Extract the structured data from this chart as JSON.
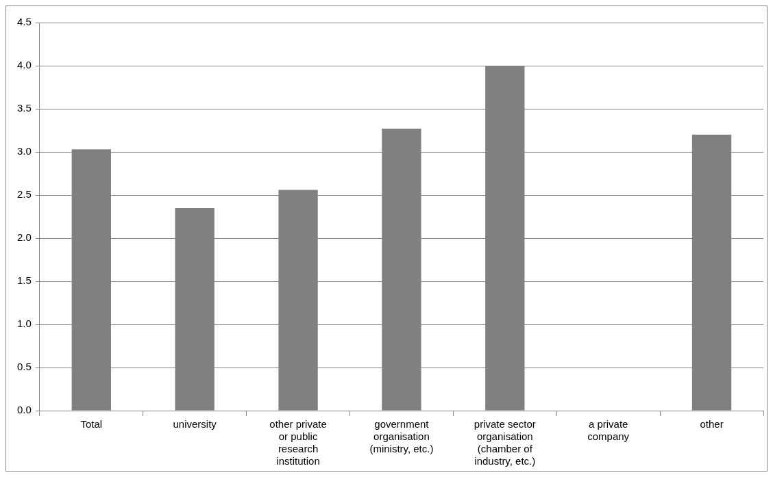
{
  "chart_data": {
    "type": "bar",
    "categories": [
      "Total",
      "university",
      "other private\nor public\nresearch\ninstitution",
      "government\norganisation\n(ministry, etc.)",
      "private sector\norganisation\n(chamber of\nindustry, etc.)",
      "a private\ncompany",
      "other"
    ],
    "values": [
      3.03,
      2.35,
      2.56,
      3.27,
      4.0,
      null,
      3.2
    ],
    "color": "#808080",
    "ylim": [
      0,
      4.5
    ],
    "yticks": [
      {
        "value": 0,
        "label": "0.0"
      },
      {
        "value": 0.5,
        "label": "0.5"
      },
      {
        "value": 1,
        "label": "1.0"
      },
      {
        "value": 1.5,
        "label": "1.5"
      },
      {
        "value": 2,
        "label": "2.0"
      },
      {
        "value": 2.5,
        "label": "2.5"
      },
      {
        "value": 3,
        "label": "3.0"
      },
      {
        "value": 3.5,
        "label": "3.5"
      },
      {
        "value": 4,
        "label": "4.0"
      },
      {
        "value": 4.5,
        "label": "4.5"
      }
    ],
    "grid": "y",
    "legend": false
  }
}
